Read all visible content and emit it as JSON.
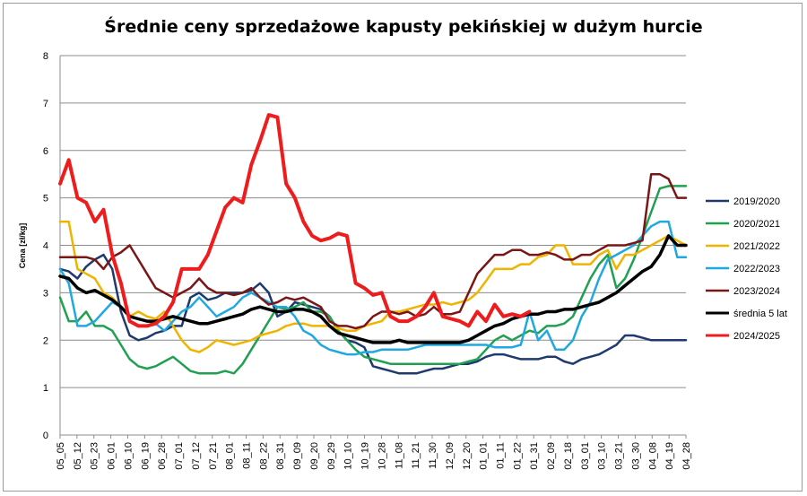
{
  "chart_data": {
    "type": "line",
    "title": "Średnie ceny sprzedażowe kapusty pekińskiej w dużym hurcie",
    "ylabel": "Cena [zł/kg]",
    "xlabel": "",
    "ylim": [
      0,
      8
    ],
    "yticks": [
      "0",
      "1",
      "2",
      "3",
      "4",
      "5",
      "6",
      "7",
      "8"
    ],
    "grid": true,
    "legend_position": "right",
    "x_ticks": [
      "05_05",
      "05_12",
      "05_23",
      "06_01",
      "06_10",
      "06_19",
      "06_28",
      "07_01",
      "07_12",
      "07_21",
      "08_01",
      "08_11",
      "08_22",
      "08_31",
      "09_09",
      "09_20",
      "09_29",
      "10_10",
      "10_19",
      "10_28",
      "11_08",
      "11_21",
      "11_30",
      "12_09",
      "12_20",
      "01_01",
      "01_11",
      "01_22",
      "01_31",
      "02_09",
      "02_18",
      "03_01",
      "03_10",
      "03_21",
      "03_30",
      "04_08",
      "04_19",
      "04_28"
    ],
    "series": [
      {
        "name": "2019/2020",
        "color": "#1f3a6e",
        "width": 2.5,
        "values": [
          3.5,
          3.45,
          3.3,
          3.55,
          3.7,
          3.8,
          3.5,
          2.6,
          2.1,
          2.0,
          2.05,
          2.15,
          2.2,
          2.3,
          2.3,
          2.9,
          3.0,
          2.85,
          2.9,
          3.0,
          3.0,
          3.0,
          3.05,
          3.2,
          3.0,
          2.5,
          2.6,
          2.8,
          2.75,
          2.7,
          2.65,
          2.5,
          2.2,
          2.0,
          1.95,
          1.85,
          1.45,
          1.4,
          1.35,
          1.3,
          1.3,
          1.3,
          1.35,
          1.4,
          1.4,
          1.45,
          1.5,
          1.5,
          1.55,
          1.65,
          1.7,
          1.7,
          1.65,
          1.6,
          1.6,
          1.6,
          1.65,
          1.65,
          1.55,
          1.5,
          1.6,
          1.65,
          1.7,
          1.8,
          1.9,
          2.1,
          2.1,
          2.05,
          2.0,
          2.0,
          2.0,
          2.0,
          2.0
        ]
      },
      {
        "name": "2020/2021",
        "color": "#20a050",
        "width": 2.5,
        "values": [
          2.9,
          2.4,
          2.4,
          2.6,
          2.3,
          2.3,
          2.2,
          1.9,
          1.6,
          1.45,
          1.4,
          1.45,
          1.55,
          1.65,
          1.5,
          1.35,
          1.3,
          1.3,
          1.3,
          1.35,
          1.3,
          1.5,
          1.8,
          2.1,
          2.4,
          2.7,
          2.65,
          2.7,
          2.8,
          2.6,
          2.6,
          2.5,
          2.2,
          2.0,
          1.8,
          1.65,
          1.6,
          1.55,
          1.5,
          1.5,
          1.5,
          1.5,
          1.5,
          1.5,
          1.5,
          1.5,
          1.5,
          1.55,
          1.6,
          1.8,
          2.0,
          2.1,
          2.0,
          2.1,
          2.2,
          2.15,
          2.3,
          2.3,
          2.35,
          2.5,
          2.9,
          3.3,
          3.6,
          3.8,
          3.1,
          3.3,
          3.7,
          4.2,
          4.7,
          5.2,
          5.25,
          5.25,
          5.25
        ]
      },
      {
        "name": "2021/2022",
        "color": "#f0b400",
        "width": 2.5,
        "values": [
          4.5,
          4.5,
          3.5,
          3.4,
          3.3,
          3.0,
          2.9,
          2.7,
          2.5,
          2.6,
          2.5,
          2.45,
          2.6,
          2.3,
          2.0,
          1.8,
          1.75,
          1.85,
          2.0,
          1.95,
          1.9,
          1.95,
          2.0,
          2.1,
          2.15,
          2.2,
          2.3,
          2.35,
          2.35,
          2.3,
          2.3,
          2.3,
          2.25,
          2.2,
          2.2,
          2.3,
          2.35,
          2.4,
          2.6,
          2.6,
          2.65,
          2.7,
          2.75,
          2.75,
          2.8,
          2.75,
          2.8,
          2.85,
          3.0,
          3.25,
          3.5,
          3.5,
          3.5,
          3.6,
          3.6,
          3.75,
          3.8,
          4.0,
          4.0,
          3.6,
          3.6,
          3.6,
          3.8,
          3.9,
          3.5,
          3.8,
          3.8,
          3.9,
          4.0,
          4.1,
          4.2,
          4.1,
          4.0
        ]
      },
      {
        "name": "2022/2023",
        "color": "#20a8e0",
        "width": 2.5,
        "values": [
          3.5,
          3.2,
          2.3,
          2.3,
          2.4,
          2.6,
          2.8,
          2.7,
          2.5,
          2.45,
          2.4,
          2.35,
          2.2,
          2.4,
          2.6,
          2.7,
          2.9,
          2.7,
          2.5,
          2.6,
          2.7,
          2.9,
          3.0,
          2.9,
          2.8,
          2.7,
          2.7,
          2.5,
          2.2,
          2.1,
          1.9,
          1.8,
          1.75,
          1.7,
          1.7,
          1.75,
          1.75,
          1.8,
          1.8,
          1.8,
          1.8,
          1.85,
          1.9,
          1.9,
          1.9,
          1.9,
          1.9,
          1.9,
          1.9,
          1.9,
          1.85,
          1.85,
          1.85,
          1.9,
          2.6,
          2.0,
          2.2,
          1.8,
          1.8,
          2.0,
          2.5,
          2.8,
          3.3,
          3.7,
          3.8,
          3.9,
          4.0,
          4.2,
          4.4,
          4.5,
          4.5,
          3.75,
          3.75
        ]
      },
      {
        "name": "2023/2024",
        "color": "#7a1616",
        "width": 2.5,
        "values": [
          3.75,
          3.75,
          3.75,
          3.75,
          3.7,
          3.5,
          3.75,
          3.85,
          4.0,
          3.7,
          3.4,
          3.1,
          3.0,
          2.9,
          3.0,
          3.1,
          3.3,
          3.1,
          3.0,
          3.0,
          2.95,
          3.0,
          3.1,
          2.9,
          2.75,
          2.8,
          2.9,
          2.85,
          2.9,
          2.8,
          2.7,
          2.4,
          2.3,
          2.3,
          2.25,
          2.3,
          2.5,
          2.6,
          2.6,
          2.55,
          2.6,
          2.5,
          2.55,
          2.7,
          2.55,
          2.55,
          2.6,
          3.0,
          3.4,
          3.6,
          3.8,
          3.8,
          3.9,
          3.9,
          3.8,
          3.8,
          3.85,
          3.8,
          3.7,
          3.7,
          3.8,
          3.8,
          3.9,
          4.0,
          4.0,
          4.0,
          4.05,
          4.1,
          5.5,
          5.5,
          5.4,
          5.0,
          5.0
        ]
      },
      {
        "name": "średnia 5 lat",
        "color": "#000000",
        "width": 3.5,
        "values": [
          3.35,
          3.3,
          3.1,
          3.0,
          3.05,
          2.95,
          2.85,
          2.7,
          2.5,
          2.45,
          2.4,
          2.4,
          2.45,
          2.5,
          2.45,
          2.4,
          2.35,
          2.35,
          2.4,
          2.45,
          2.5,
          2.55,
          2.65,
          2.7,
          2.65,
          2.6,
          2.6,
          2.65,
          2.65,
          2.6,
          2.5,
          2.3,
          2.15,
          2.1,
          2.05,
          2.0,
          1.95,
          1.95,
          1.95,
          2.0,
          1.95,
          1.95,
          1.95,
          1.95,
          1.95,
          1.95,
          1.95,
          2.0,
          2.1,
          2.2,
          2.3,
          2.35,
          2.45,
          2.5,
          2.55,
          2.55,
          2.6,
          2.6,
          2.65,
          2.65,
          2.7,
          2.75,
          2.8,
          2.9,
          3.0,
          3.15,
          3.3,
          3.45,
          3.55,
          3.8,
          4.2,
          4.0,
          4.0
        ]
      },
      {
        "name": "2024/2025",
        "color": "#ee1c1c",
        "width": 4,
        "values": [
          5.3,
          5.8,
          5.0,
          4.9,
          4.5,
          4.75,
          3.8,
          3.2,
          2.4,
          2.3,
          2.3,
          2.35,
          2.5,
          2.8,
          3.5,
          3.5,
          3.5,
          3.8,
          4.3,
          4.8,
          5.0,
          4.9,
          5.7,
          6.2,
          6.75,
          6.7,
          5.3,
          5.0,
          4.5,
          4.2,
          4.1,
          4.15,
          4.25,
          4.2,
          3.2,
          3.1,
          2.95,
          3.0,
          2.5,
          2.4,
          2.4,
          2.5,
          2.7,
          3.0,
          2.5,
          2.45,
          2.4,
          2.3,
          2.6,
          2.4,
          2.75,
          2.5,
          2.55,
          2.5,
          2.6
        ]
      }
    ],
    "legend": [
      "2019/2020",
      "2020/2021",
      "2021/2022",
      "2022/2023",
      "2023/2024",
      "średnia 5 lat",
      "2024/2025"
    ]
  }
}
